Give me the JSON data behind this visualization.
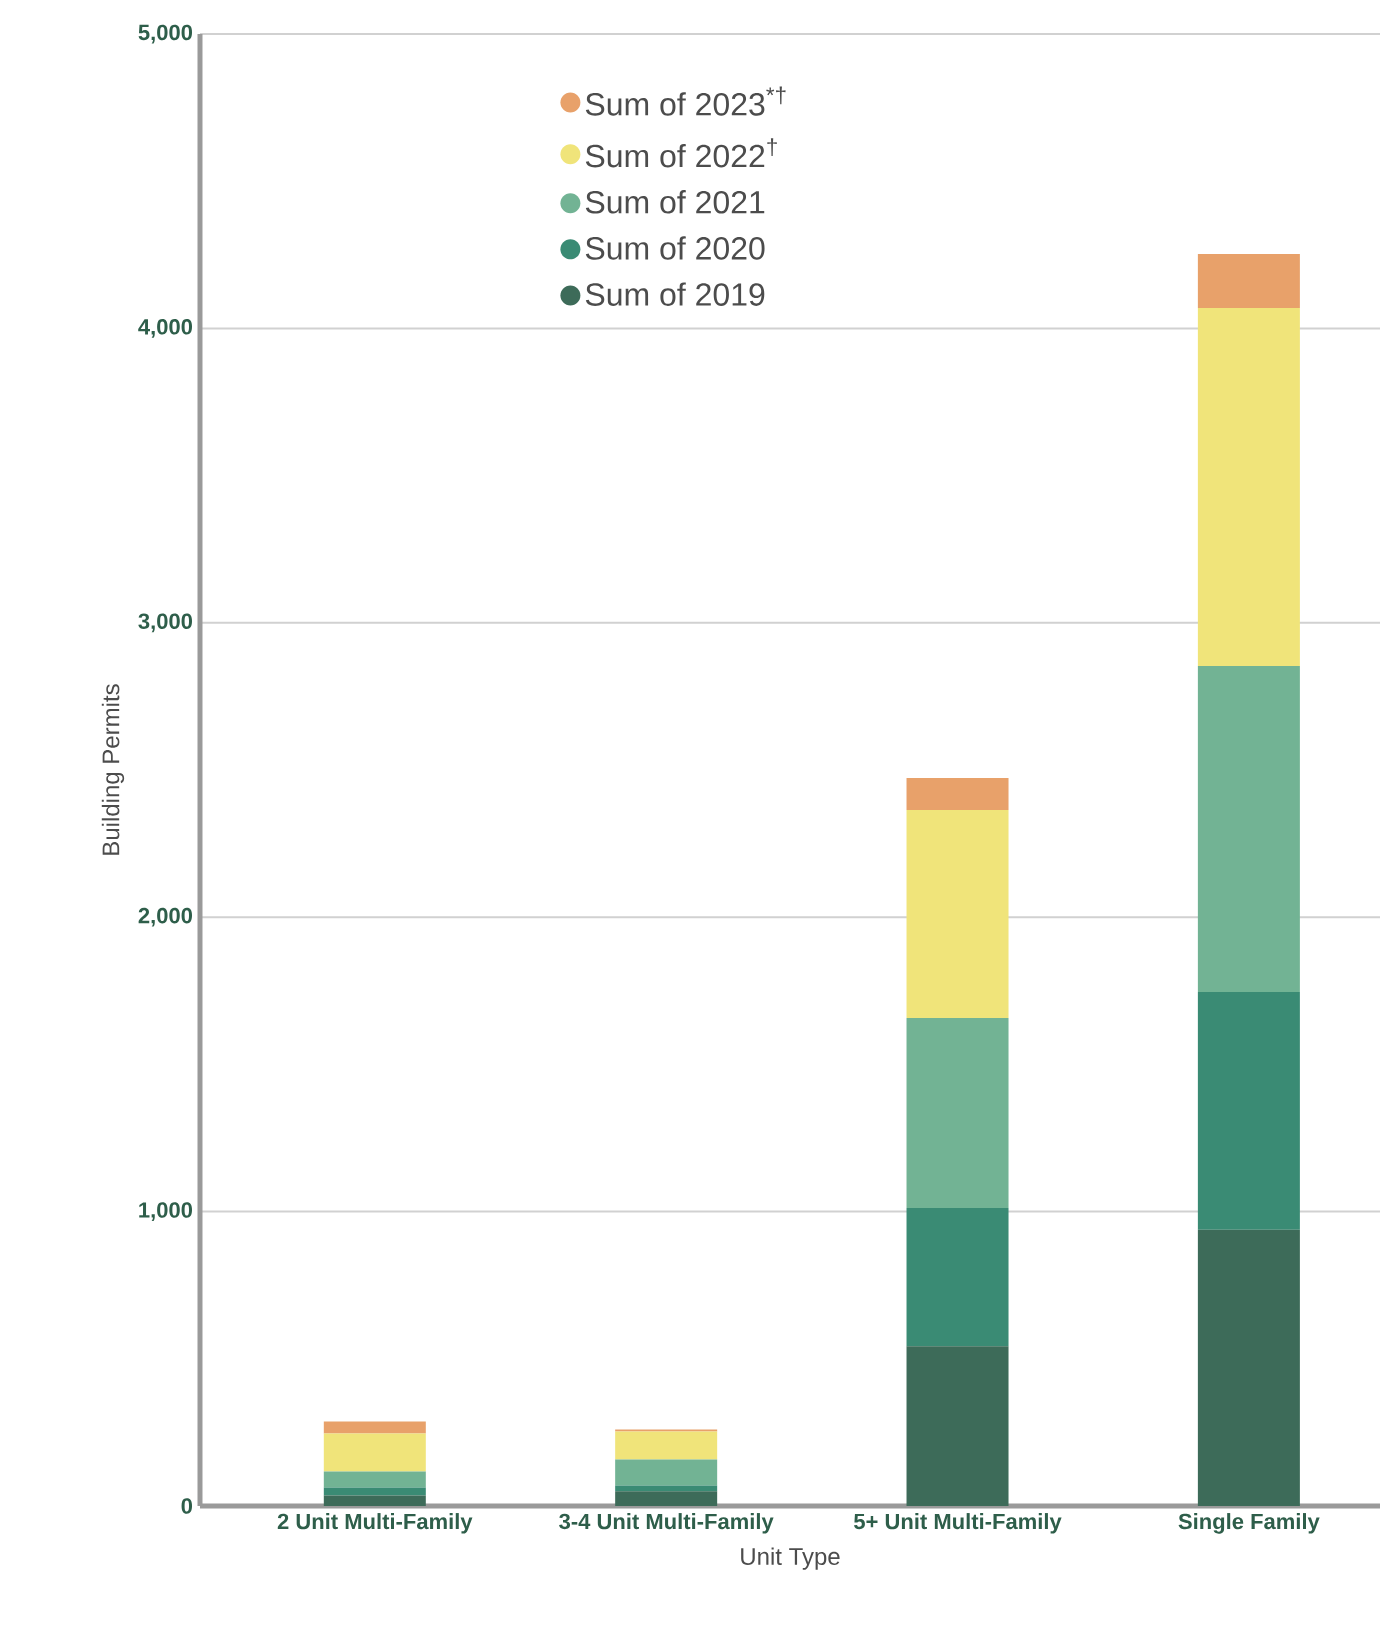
{
  "chart_data": {
    "type": "bar",
    "stacked": true,
    "xlabel": "Unit Type",
    "ylabel": "Building Permits",
    "categories": [
      "2 Unit Multi-Family",
      "3-4 Unit Multi-Family",
      "5+ Unit Multi-Family",
      "Single Family"
    ],
    "series": [
      {
        "name": "Sum of 2019",
        "color": "#3d6b59",
        "values": [
          36,
          50,
          543,
          938
        ]
      },
      {
        "name": "Sum of 2020",
        "color": "#3a8b74",
        "values": [
          27,
          20,
          469,
          808
        ]
      },
      {
        "name": "Sum of 2021",
        "color": "#72b394",
        "values": [
          54,
          88,
          646,
          1107
        ]
      },
      {
        "name": "Sum of 2022$^{†}$",
        "color": "#f0e47a",
        "values": [
          129,
          95,
          706,
          1216
        ]
      },
      {
        "name": "Sum of 2023$^{*†}$",
        "color": "#e8a16a",
        "values": [
          41,
          7,
          109,
          184
        ]
      }
    ],
    "ylim": [
      0,
      5000
    ],
    "yticks": [
      0,
      {
        "value": 1000,
        "label": "1,000"
      },
      {
        "value": 2000,
        "label": "2,000"
      },
      {
        "value": 3000,
        "label": "3,000"
      },
      {
        "value": 4000,
        "label": "4,000"
      },
      {
        "value": 5000,
        "label": "5,000"
      }
    ],
    "grid": "y",
    "legend": "top left"
  }
}
